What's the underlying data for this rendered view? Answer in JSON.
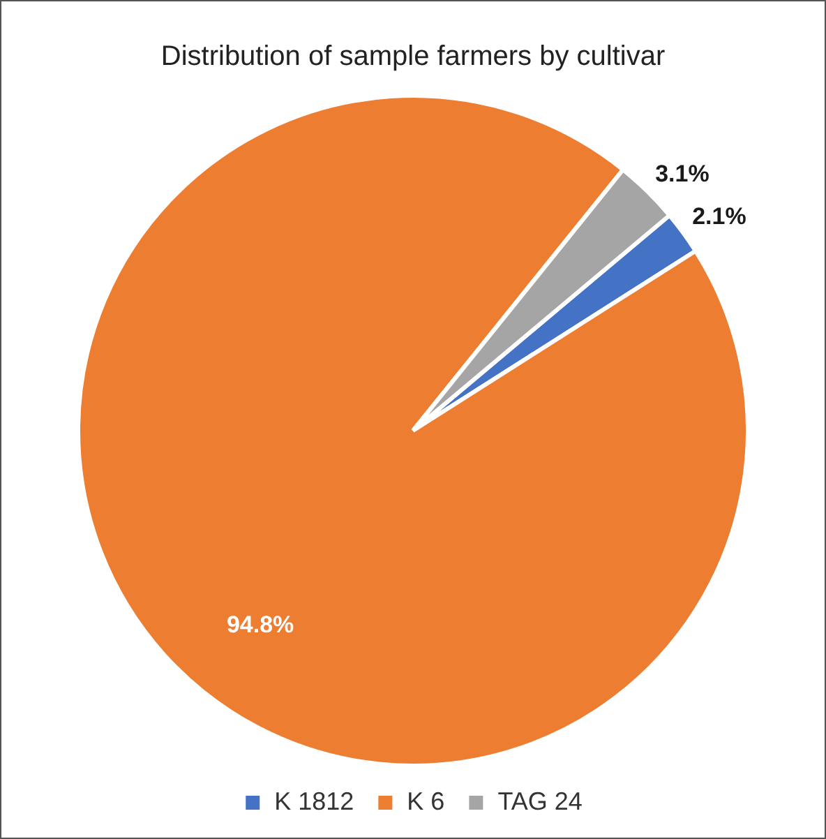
{
  "chart_data": {
    "type": "pie",
    "title": "Distribution of sample farmers by cultivar",
    "categories": [
      "K 1812",
      "K 6",
      "TAG 24"
    ],
    "values": [
      2.1,
      94.8,
      3.1
    ],
    "value_labels": [
      "2.1%",
      "94.8%",
      "3.1%"
    ],
    "colors": [
      "#4472c4",
      "#ed7d31",
      "#a5a5a5"
    ],
    "legend": "bottom"
  }
}
